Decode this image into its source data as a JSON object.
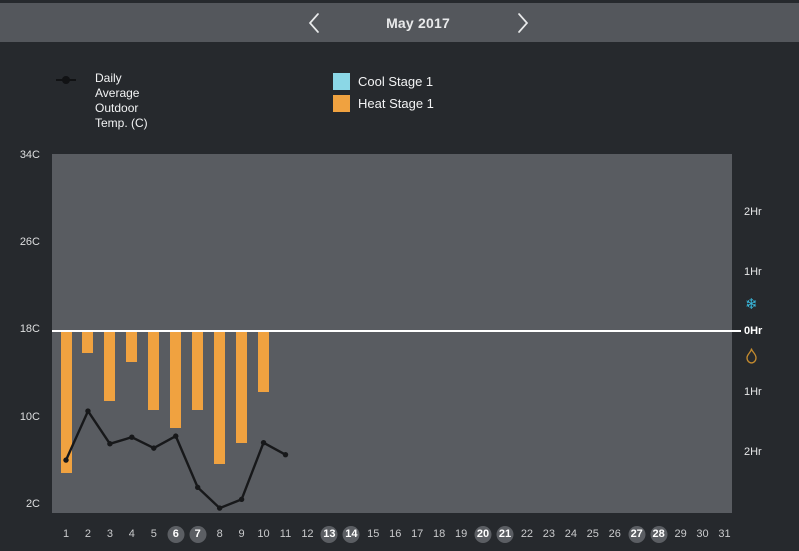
{
  "header": {
    "title": "May 2017",
    "prev_icon": "chevron-left",
    "next_icon": "chevron-right"
  },
  "legend": {
    "temp": {
      "lines": [
        "Daily",
        "Average",
        "Outdoor",
        "Temp. (C)"
      ]
    },
    "cool": {
      "label": "Cool Stage 1",
      "color": "#8BD7E6"
    },
    "heat": {
      "label": "Heat Stage 1",
      "color": "#F0A240"
    }
  },
  "colors": {
    "page_bg": "#26292D",
    "header_bg": "#54575C",
    "plot_bg": "#595C61",
    "zero_line": "#FFFFFF",
    "heat_bar": "#F0A240",
    "cool_bar": "#8BD7E6",
    "temp_line": "#17181A",
    "snowflake_icon": "#39B7DB",
    "flame_icon": "#C38A2E"
  },
  "chart_data": {
    "type": "bar",
    "title": "May 2017",
    "x_labels": [
      "1",
      "2",
      "3",
      "4",
      "5",
      "6",
      "7",
      "8",
      "9",
      "10",
      "11",
      "12",
      "13",
      "14",
      "15",
      "16",
      "17",
      "18",
      "19",
      "20",
      "21",
      "22",
      "23",
      "24",
      "25",
      "26",
      "27",
      "28",
      "29",
      "30",
      "31"
    ],
    "weekend_days": [
      6,
      7,
      13,
      14,
      20,
      21,
      27,
      28
    ],
    "temp_axis": {
      "unit": "C",
      "ticks": [
        "34C",
        "26C",
        "18C",
        "10C",
        "2C"
      ],
      "tick_values": [
        34,
        26,
        18,
        10,
        2
      ],
      "range": [
        2,
        34
      ]
    },
    "runtime_axis": {
      "unit": "Hr",
      "ticks": [
        "2Hr",
        "1Hr",
        "0Hr",
        "1Hr",
        "2Hr"
      ],
      "tick_signed_values": [
        -2,
        -1,
        0,
        1,
        2
      ],
      "cool_icon": "snowflake",
      "heat_icon": "flame"
    },
    "series": [
      {
        "name": "Daily Average Outdoor Temp. (C)",
        "type": "line",
        "color": "#17181A",
        "days": [
          1,
          2,
          3,
          4,
          5,
          6,
          7,
          8,
          9,
          10,
          11
        ],
        "values_c": [
          6.1,
          10.6,
          7.6,
          8.2,
          7.2,
          8.3,
          3.6,
          1.7,
          2.5,
          7.7,
          6.6
        ]
      },
      {
        "name": "Cool Stage 1",
        "type": "bar",
        "color": "#8BD7E6",
        "days": [],
        "values_hours": []
      },
      {
        "name": "Heat Stage 1",
        "type": "bar",
        "color": "#F0A240",
        "days": [
          1,
          2,
          3,
          4,
          5,
          6,
          7,
          8,
          9,
          10
        ],
        "values_hours": [
          2.35,
          0.35,
          1.15,
          0.5,
          1.3,
          1.6,
          1.3,
          2.2,
          1.85,
          1.0
        ]
      }
    ]
  }
}
